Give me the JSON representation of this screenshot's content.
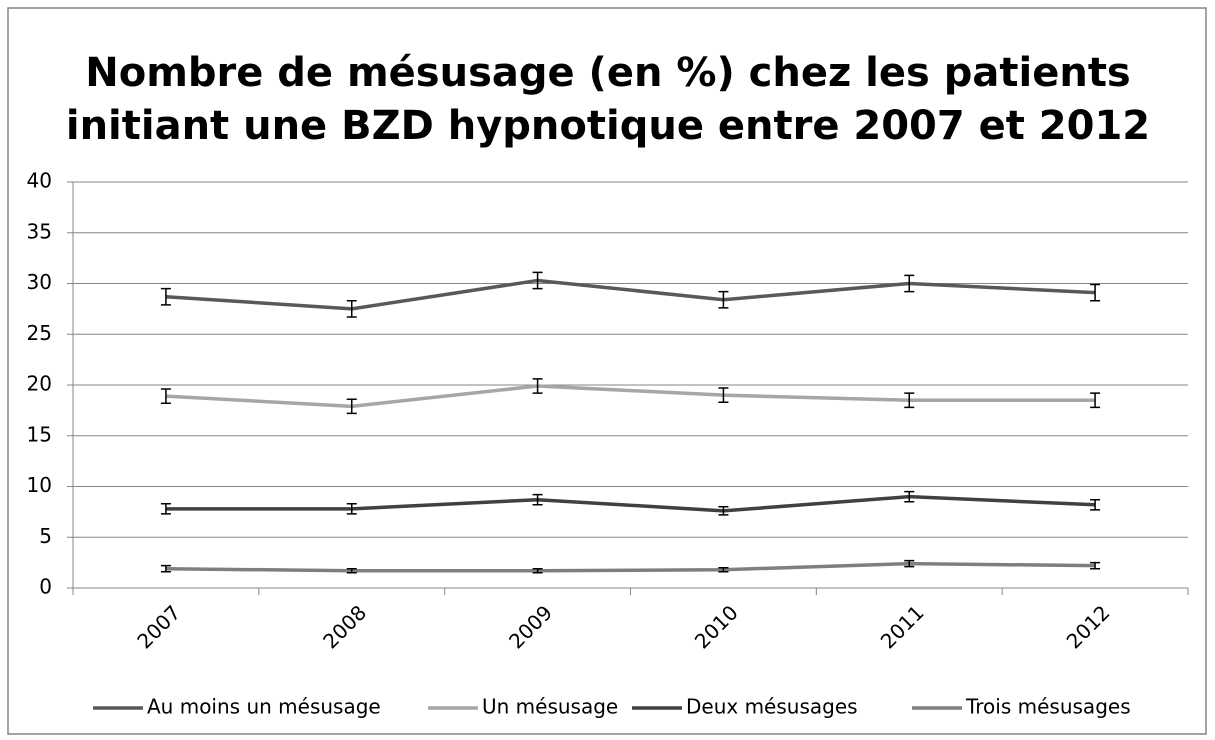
{
  "chart_data": {
    "type": "line",
    "title": [
      "Nombre de mésusage (en %) chez les patients",
      "initiant une BZD hypnotique entre 2007 et 2012"
    ],
    "categories": [
      "2007",
      "2008",
      "2009",
      "2010",
      "2011",
      "2012"
    ],
    "series": [
      {
        "name": "Au moins un mésusage",
        "color": "#595959",
        "values": [
          28.7,
          27.5,
          30.3,
          28.4,
          30.0,
          29.1
        ],
        "errors": [
          0.8,
          0.8,
          0.8,
          0.8,
          0.8,
          0.8
        ]
      },
      {
        "name": "Un mésusage",
        "color": "#a6a6a6",
        "values": [
          18.9,
          17.9,
          19.9,
          19.0,
          18.5,
          18.5
        ],
        "errors": [
          0.7,
          0.7,
          0.7,
          0.7,
          0.7,
          0.7
        ]
      },
      {
        "name": "Deux mésusages",
        "color": "#404040",
        "values": [
          7.8,
          7.8,
          8.7,
          7.6,
          9.0,
          8.2
        ],
        "errors": [
          0.5,
          0.5,
          0.5,
          0.4,
          0.5,
          0.5
        ]
      },
      {
        "name": "Trois mésusages",
        "color": "#7f7f7f",
        "values": [
          1.9,
          1.7,
          1.7,
          1.8,
          2.4,
          2.2
        ],
        "errors": [
          0.3,
          0.2,
          0.2,
          0.2,
          0.3,
          0.3
        ]
      }
    ],
    "ylim": [
      0,
      40
    ],
    "yticks": [
      0,
      5,
      10,
      15,
      20,
      25,
      30,
      35,
      40
    ],
    "grid": true,
    "legend": "bottom"
  }
}
